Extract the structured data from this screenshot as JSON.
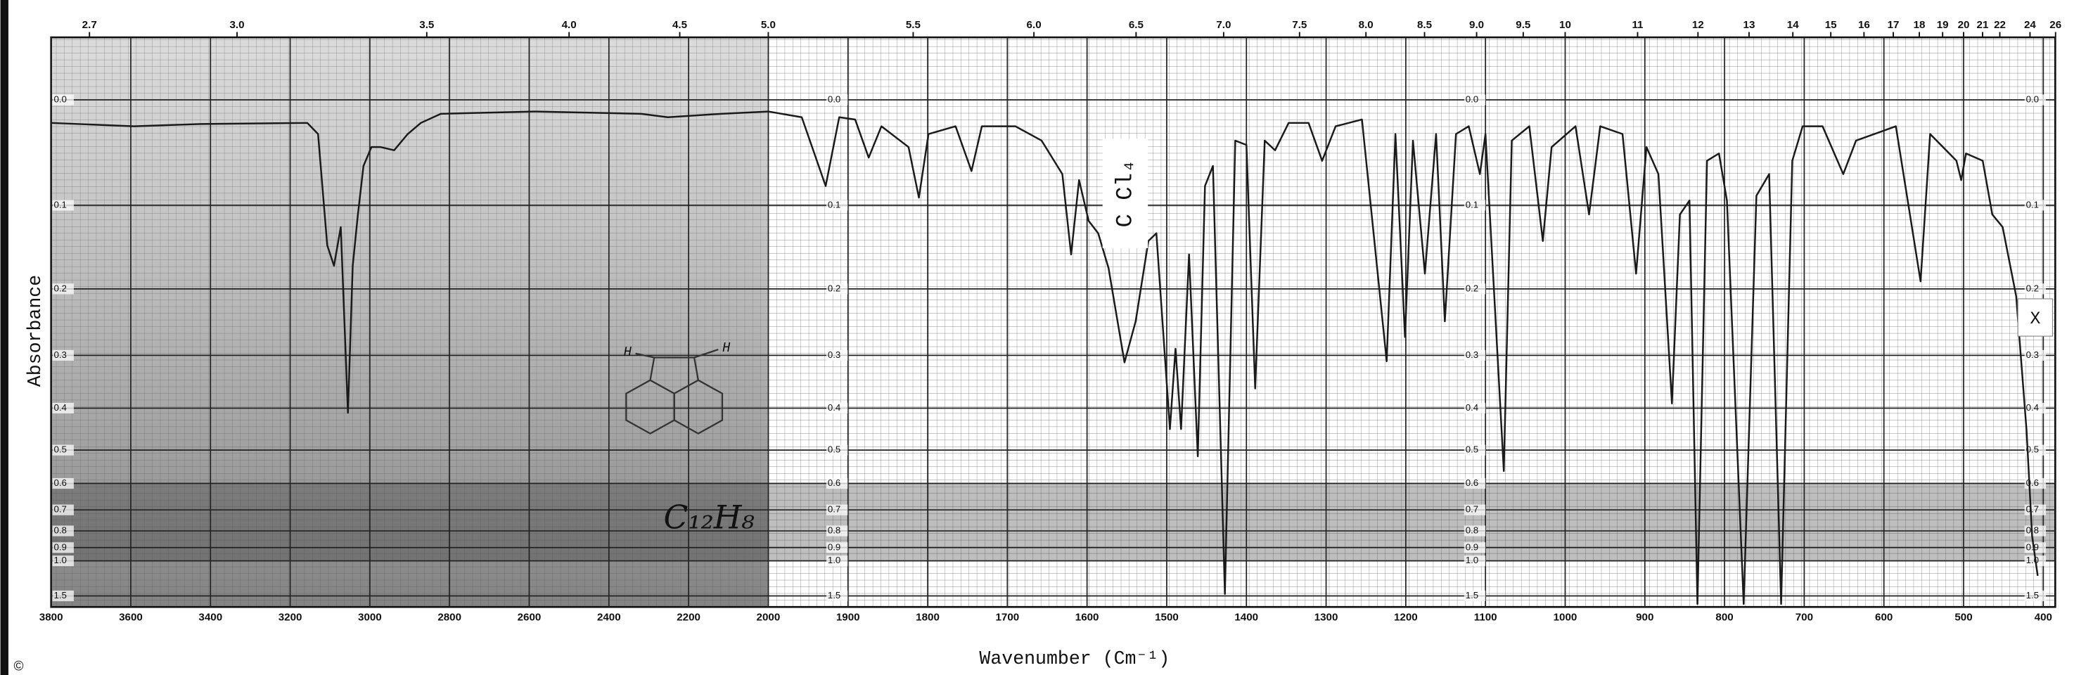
{
  "chart_data": {
    "type": "line",
    "x_label": "Wavenumber (Cm⁻¹)",
    "y_label": "Absorbance",
    "color": "#1a1a1a",
    "yscale": "transmittance",
    "grid": true,
    "xlim": [
      3800,
      385
    ],
    "ylim": [
      -0.05,
      2
    ],
    "xticks": [
      3800,
      3600,
      3400,
      3200,
      3000,
      2800,
      2600,
      2400,
      2200,
      2000,
      1900,
      1800,
      1700,
      1600,
      1500,
      1400,
      1300,
      1200,
      1100,
      1000,
      900,
      800,
      700,
      600,
      500,
      400
    ],
    "x2ticks": [
      2.7,
      {
        "value": 3,
        "label": "3.0"
      },
      3.5,
      {
        "value": 4,
        "label": "4.0"
      },
      4.5,
      {
        "value": 5,
        "label": "5.0"
      },
      5.5,
      {
        "value": 6,
        "label": "6.0"
      },
      6.5,
      {
        "value": 7,
        "label": "7.0"
      },
      7.5,
      {
        "value": 8,
        "label": "8.0"
      },
      8.5,
      {
        "value": 9,
        "label": "9.0"
      },
      9.5,
      10,
      11,
      12,
      13,
      14,
      15,
      16,
      17,
      18,
      19,
      20,
      21,
      22,
      24,
      26
    ],
    "yticks": [
      {
        "value": 0,
        "label": "0.0"
      },
      0.1,
      0.2,
      0.3,
      0.4,
      0.5,
      0.6,
      0.7,
      0.8,
      0.9,
      {
        "value": 1,
        "label": "1.0"
      },
      1.5
    ],
    "x": [
      3800,
      3592,
      3425,
      3157,
      3130,
      3107,
      3090,
      3073,
      3055,
      3043,
      3030,
      3016,
      2996,
      2973,
      2939,
      2905,
      2872,
      2822,
      2587,
      2319,
      2252,
      2118,
      2000,
      1958,
      1928,
      1911,
      1891,
      1874,
      1858,
      1824,
      1811,
      1799,
      1765,
      1745,
      1732,
      1690,
      1657,
      1631,
      1620,
      1610,
      1598,
      1586,
      1573,
      1553,
      1539,
      1523,
      1513,
      1496,
      1489,
      1482,
      1472,
      1461,
      1452,
      1442,
      1427,
      1414,
      1400,
      1389,
      1377,
      1364,
      1347,
      1322,
      1305,
      1288,
      1255,
      1224,
      1213,
      1201,
      1191,
      1176,
      1162,
      1151,
      1137,
      1121,
      1107,
      1100,
      1077,
      1067,
      1045,
      1028,
      1017,
      987,
      970,
      956,
      928,
      911,
      898,
      883,
      866,
      856,
      844,
      834,
      822,
      807,
      797,
      776,
      760,
      744,
      729,
      715,
      702,
      677,
      651,
      635,
      585,
      554,
      542,
      509,
      503,
      497,
      476,
      464,
      451,
      434,
      421,
      414,
      407
    ],
    "values": [
      0.02,
      0.023,
      0.021,
      0.02,
      0.03,
      0.145,
      0.17,
      0.124,
      0.41,
      0.17,
      0.11,
      0.06,
      0.042,
      0.042,
      0.045,
      0.03,
      0.02,
      0.012,
      0.01,
      0.012,
      0.015,
      0.012,
      0.01,
      0.015,
      0.08,
      0.015,
      0.017,
      0.052,
      0.023,
      0.042,
      0.092,
      0.03,
      0.023,
      0.065,
      0.023,
      0.023,
      0.036,
      0.068,
      0.156,
      0.074,
      0.117,
      0.131,
      0.173,
      0.312,
      0.246,
      0.14,
      0.131,
      0.447,
      0.289,
      0.447,
      0.156,
      0.517,
      0.08,
      0.06,
      1.45,
      0.036,
      0.04,
      0.36,
      0.036,
      0.045,
      0.02,
      0.02,
      0.055,
      0.023,
      0.017,
      0.31,
      0.03,
      0.27,
      0.036,
      0.18,
      0.03,
      0.246,
      0.03,
      0.023,
      0.068,
      0.03,
      0.56,
      0.036,
      0.023,
      0.14,
      0.042,
      0.023,
      0.11,
      0.023,
      0.03,
      0.18,
      0.042,
      0.068,
      0.39,
      0.11,
      0.095,
      1.8,
      0.055,
      0.048,
      0.095,
      1.8,
      0.09,
      0.068,
      1.8,
      0.055,
      0.023,
      0.023,
      0.068,
      0.036,
      0.023,
      0.19,
      0.03,
      0.055,
      0.074,
      0.048,
      0.055,
      0.11,
      0.124,
      0.21,
      0.45,
      0.83,
      1.15
    ],
    "annotations": [
      "C Cl₄",
      "C₁₂H₈",
      "X",
      "H",
      "H",
      "©"
    ]
  }
}
